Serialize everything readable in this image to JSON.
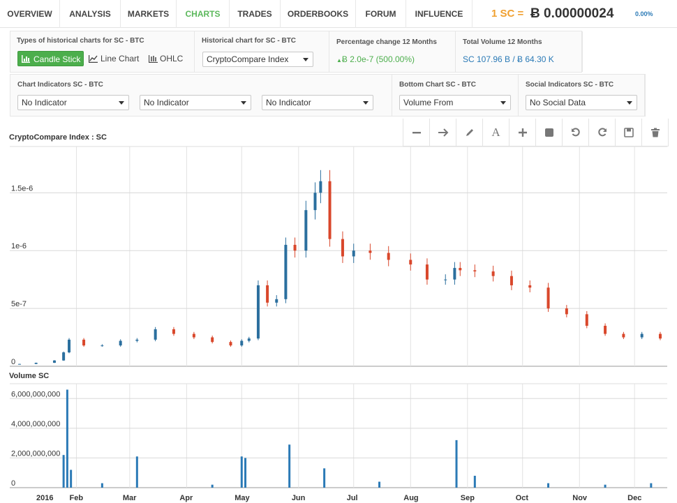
{
  "nav": {
    "tabs": [
      "OVERVIEW",
      "ANALYSIS",
      "MARKETS",
      "CHARTS",
      "TRADES",
      "ORDERBOOKS",
      "FORUM",
      "INFLUENCE"
    ],
    "active_tab": "CHARTS",
    "price_label": "1 SC =",
    "price_value": "Ƀ 0.00000024",
    "price_change": "0.00%"
  },
  "controls": {
    "chart_types_title": "Types of historical charts for SC - BTC",
    "candle_label": "Candle Stick",
    "line_label": "Line Chart",
    "ohlc_label": "OHLC",
    "historical_title": "Historical chart for SC - BTC",
    "historical_value": "CryptoCompare Index",
    "pct_title": "Percentage change 12 Months",
    "pct_value": "Ƀ 2.0e-7 (500.00%)",
    "volume_title": "Total Volume 12 Months",
    "volume_value": "SC 107.96 B / Ƀ 64.30 K",
    "indicators_title": "Chart Indicators SC - BTC",
    "indicator_1": "No Indicator",
    "indicator_2": "No Indicator",
    "indicator_3": "No Indicator",
    "bottom_title": "Bottom Chart SC - BTC",
    "bottom_value": "Volume From",
    "social_title": "Social Indicators SC - BTC",
    "social_value": "No Social Data"
  },
  "toolbar": {
    "icons": [
      "minus-icon",
      "arrow-right-icon",
      "pencil-icon",
      "text-icon",
      "plus-icon",
      "square-icon",
      "undo-icon",
      "redo-icon",
      "save-icon",
      "trash-icon"
    ]
  },
  "colors": {
    "accent_green": "#4cae4c",
    "up_candle": "#2b6f9e",
    "down_candle": "#d9472b",
    "volume_bar": "#2b7ab6"
  },
  "chart_data": [
    {
      "type": "candlestick",
      "title": "CryptoCompare Index : SC",
      "y_ticks": [
        "0",
        "5e-7",
        "1e-6",
        "1.5e-6"
      ],
      "y_tick_values": [
        0,
        5e-07,
        1e-06,
        1.5e-06
      ],
      "ylim": [
        0,
        1.9e-06
      ],
      "grid": true,
      "series": [
        {
          "x": [
            "2016-01-01",
            "2016-01-10",
            "2016-01-20",
            "2016-01-25",
            "2016-01-28",
            "2016-02-05",
            "2016-02-15",
            "2016-02-25",
            "2016-03-05",
            "2016-03-15",
            "2016-03-25",
            "2016-04-05",
            "2016-04-15",
            "2016-04-25",
            "2016-05-01",
            "2016-05-05",
            "2016-05-10",
            "2016-05-15",
            "2016-05-20",
            "2016-05-25",
            "2016-05-30",
            "2016-06-05",
            "2016-06-10",
            "2016-06-13",
            "2016-06-18",
            "2016-06-25",
            "2016-07-01",
            "2016-07-10",
            "2016-07-20",
            "2016-08-01",
            "2016-08-10",
            "2016-08-20",
            "2016-08-25",
            "2016-08-28",
            "2016-09-05",
            "2016-09-15",
            "2016-09-25",
            "2016-10-05",
            "2016-10-15",
            "2016-10-25",
            "2016-11-05",
            "2016-11-15",
            "2016-11-25",
            "2016-12-05",
            "2016-12-15"
          ],
          "close": [
            2e-08,
            3e-08,
            5e-08,
            1.2e-07,
            2.3e-07,
            1.8e-07,
            1.8e-07,
            2.2e-07,
            2.3e-07,
            3.2e-07,
            2.8e-07,
            2.5e-07,
            2.1e-07,
            1.8e-07,
            2.2e-07,
            2.4e-07,
            7e-07,
            5.5e-07,
            5.8e-07,
            1.05e-06,
            1e-06,
            1.35e-06,
            1.5e-06,
            1.6e-06,
            1.1e-06,
            9.5e-07,
            1e-06,
            9.8e-07,
            9.2e-07,
            8.8e-07,
            7.5e-07,
            7.5e-07,
            8.5e-07,
            8.3e-07,
            8.2e-07,
            7.8e-07,
            7e-07,
            6.8e-07,
            5e-07,
            4.5e-07,
            3.5e-07,
            2.8e-07,
            2.5e-07,
            2.8e-07,
            2.4e-07
          ]
        }
      ]
    },
    {
      "type": "bar",
      "title": "Volume SC",
      "y_ticks": [
        "0",
        "2,000,000,000",
        "4,000,000,000",
        "6,000,000,000"
      ],
      "y_tick_values": [
        0,
        2000000000,
        4000000000,
        6000000000
      ],
      "ylim": [
        0,
        7000000000
      ],
      "x_ticks": [
        "2016",
        "Feb",
        "Mar",
        "Apr",
        "May",
        "Jun",
        "Jul",
        "Aug",
        "Sep",
        "Oct",
        "Nov",
        "Dec"
      ],
      "grid": true,
      "series": [
        {
          "name": "Volume SC",
          "x": [
            "2016-01-25",
            "2016-01-27",
            "2016-01-29",
            "2016-03-05",
            "2016-05-01",
            "2016-05-03",
            "2016-05-27",
            "2016-06-15",
            "2016-08-26",
            "2016-09-05",
            "2016-02-15",
            "2016-04-15",
            "2016-07-15",
            "2016-10-15",
            "2016-11-15",
            "2016-12-10"
          ],
          "values": [
            2200000000,
            6600000000,
            1200000000,
            2100000000,
            2100000000,
            2000000000,
            2900000000,
            1300000000,
            3200000000,
            800000000,
            300000000,
            200000000,
            400000000,
            300000000,
            200000000,
            300000000
          ]
        }
      ]
    }
  ]
}
